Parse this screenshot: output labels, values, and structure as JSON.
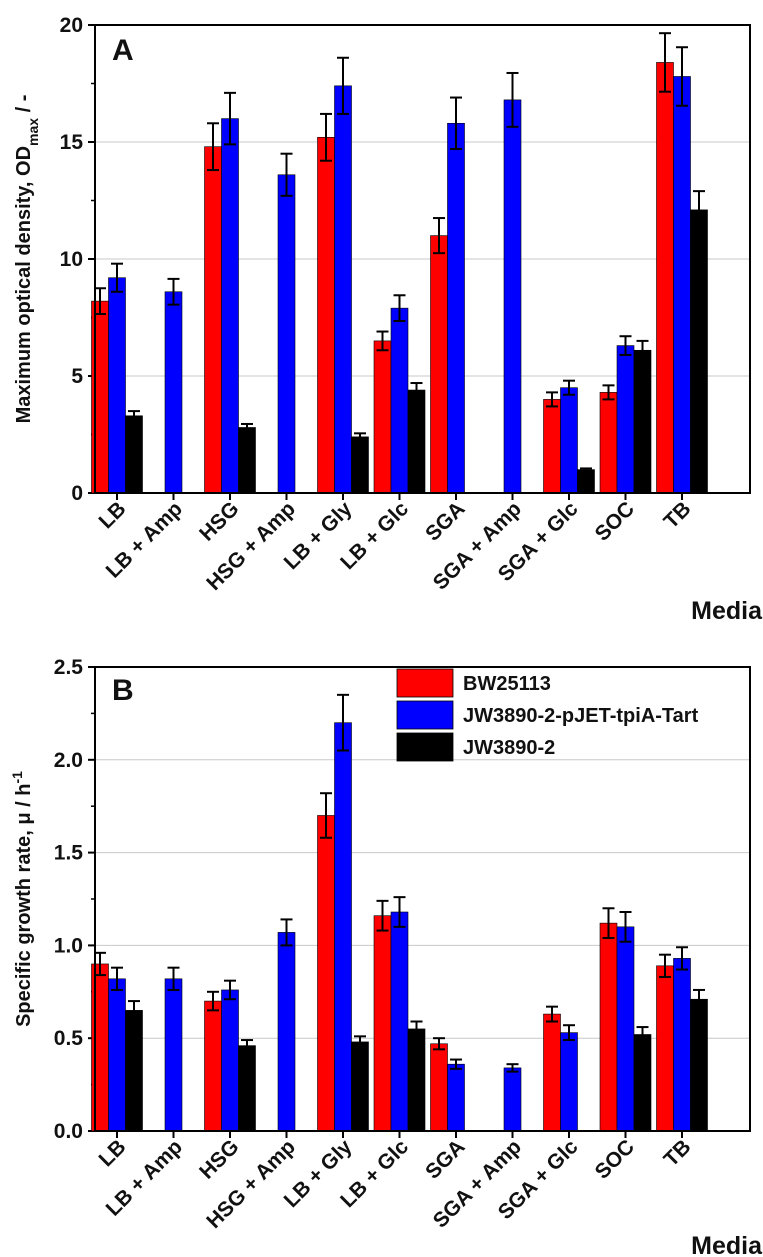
{
  "colors": {
    "BW25113": "#ff0000",
    "JW3890-2-pJET-tpiA-Tart": "#0000ff",
    "JW3890-2": "#000000"
  },
  "chart_data": [
    {
      "type": "bar",
      "panel_label": "A",
      "ylabel": "Maximum optical density, OD",
      "ylabel_subscript": "max",
      "ylabel_suffix": " / -",
      "xlabel": "Media",
      "ylim": [
        0,
        20
      ],
      "yticks": [
        "0",
        "5",
        "10",
        "15",
        "20"
      ],
      "grid": true,
      "legend": "none",
      "categories": [
        "LB",
        "LB + Amp",
        "HSG",
        "HSG + Amp",
        "LB + Gly",
        "LB + Glc",
        "SGA",
        "SGA + Amp",
        "SGA + Glc",
        "SOC",
        "TB"
      ],
      "series": [
        {
          "name": "BW25113",
          "values": [
            8.2,
            null,
            14.8,
            null,
            15.2,
            6.5,
            11.0,
            null,
            4.0,
            4.3,
            18.4
          ],
          "errors": [
            0.55,
            null,
            1.0,
            null,
            1.0,
            0.4,
            0.75,
            null,
            0.3,
            0.3,
            1.25
          ]
        },
        {
          "name": "JW3890-2-pJET-tpiA-Tart",
          "values": [
            9.2,
            8.6,
            16.0,
            13.6,
            17.4,
            7.9,
            15.8,
            16.8,
            4.5,
            6.3,
            17.8
          ],
          "errors": [
            0.6,
            0.55,
            1.1,
            0.9,
            1.2,
            0.55,
            1.1,
            1.15,
            0.3,
            0.4,
            1.25
          ]
        },
        {
          "name": "JW3890-2",
          "values": [
            3.3,
            null,
            2.8,
            null,
            2.4,
            4.4,
            null,
            null,
            1.0,
            6.1,
            12.1
          ],
          "errors": [
            0.2,
            null,
            0.15,
            null,
            0.15,
            0.3,
            null,
            null,
            0.05,
            0.4,
            0.8
          ]
        }
      ]
    },
    {
      "type": "bar",
      "panel_label": "B",
      "ylabel": "Specific growth rate, μ / h",
      "ylabel_superscript": "-1",
      "xlabel": "Media",
      "ylim": [
        0,
        2.5
      ],
      "yticks": [
        "0.0",
        "0.5",
        "1.0",
        "1.5",
        "2.0",
        "2.5"
      ],
      "grid": true,
      "legend": "top-right",
      "categories": [
        "LB",
        "LB + Amp",
        "HSG",
        "HSG + Amp",
        "LB + Gly",
        "LB + Glc",
        "SGA",
        "SGA + Amp",
        "SGA + Glc",
        "SOC",
        "TB"
      ],
      "series": [
        {
          "name": "BW25113",
          "values": [
            0.9,
            null,
            0.7,
            null,
            1.7,
            1.16,
            0.47,
            null,
            0.63,
            1.12,
            0.89
          ],
          "errors": [
            0.06,
            null,
            0.05,
            null,
            0.12,
            0.08,
            0.03,
            null,
            0.04,
            0.08,
            0.06
          ]
        },
        {
          "name": "JW3890-2-pJET-tpiA-Tart",
          "values": [
            0.82,
            0.82,
            0.76,
            1.07,
            2.2,
            1.18,
            0.36,
            0.34,
            0.53,
            1.1,
            0.93
          ],
          "errors": [
            0.06,
            0.06,
            0.05,
            0.07,
            0.15,
            0.08,
            0.025,
            0.02,
            0.04,
            0.08,
            0.06
          ]
        },
        {
          "name": "JW3890-2",
          "values": [
            0.65,
            null,
            0.46,
            null,
            0.48,
            0.55,
            null,
            null,
            null,
            0.52,
            0.71
          ],
          "errors": [
            0.05,
            null,
            0.03,
            null,
            0.03,
            0.04,
            null,
            null,
            null,
            0.04,
            0.05
          ]
        }
      ]
    }
  ]
}
